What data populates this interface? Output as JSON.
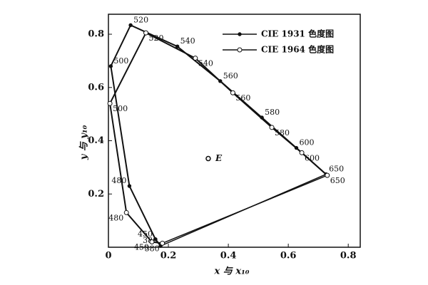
{
  "chart_data": {
    "type": "line",
    "xlabel": "x 与 x₁₀",
    "ylabel": "y 与 y₁₀",
    "xlim": [
      0,
      0.84
    ],
    "ylim": [
      0,
      0.875
    ],
    "xticks": [
      0,
      0.2,
      0.4,
      0.6,
      0.8
    ],
    "yticks": [
      0.2,
      0.4,
      0.6,
      0.8
    ],
    "legend": "upper right",
    "series": [
      {
        "name": "CIE 1931 色度图",
        "color": "#111111",
        "marker": "dot",
        "wavelengths": [
          380,
          450,
          480,
          500,
          520,
          540,
          560,
          580,
          600,
          650
        ],
        "x": [
          0.174,
          0.157,
          0.07,
          0.008,
          0.074,
          0.23,
          0.373,
          0.512,
          0.627,
          0.726
        ],
        "values": [
          0.005,
          0.03,
          0.23,
          0.68,
          0.834,
          0.754,
          0.624,
          0.487,
          0.373,
          0.274
        ]
      },
      {
        "name": "CIE 1964 色度图",
        "color": "#111111",
        "marker": "circle",
        "wavelengths": [
          380,
          450,
          480,
          500,
          520,
          540,
          560,
          580,
          600,
          650
        ],
        "x": [
          0.18,
          0.145,
          0.06,
          0.005,
          0.125,
          0.29,
          0.415,
          0.545,
          0.645,
          0.73
        ],
        "values": [
          0.015,
          0.02,
          0.13,
          0.54,
          0.805,
          0.71,
          0.58,
          0.45,
          0.355,
          0.27
        ]
      }
    ],
    "annotations": [
      {
        "text": "E",
        "x": 0.333,
        "y": 0.333
      }
    ]
  }
}
